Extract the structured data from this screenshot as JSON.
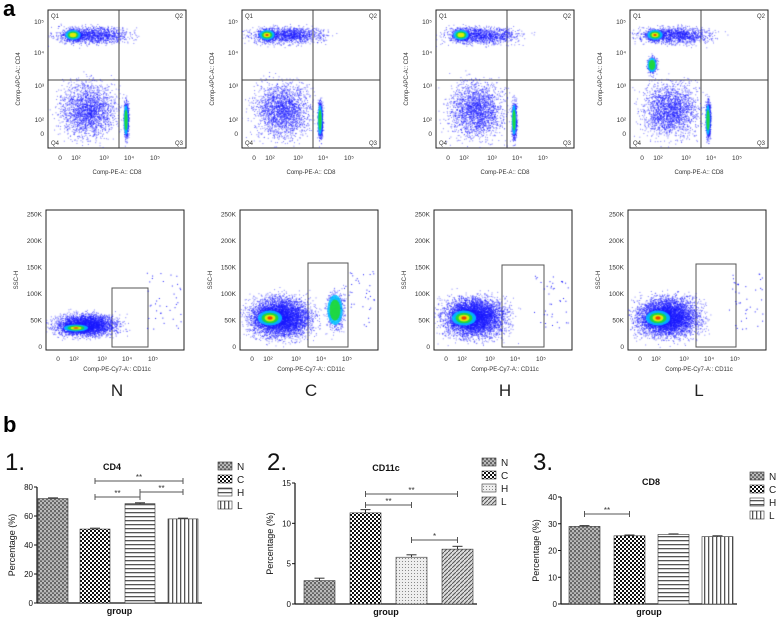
{
  "panel_a_label": "a",
  "panel_b_label": "b",
  "flow": {
    "groups": [
      "N",
      "C",
      "H",
      "L"
    ],
    "top": {
      "xlabel": "Comp-PE-A:: CD8",
      "ylabel": "Comp-APC-A:: CD4",
      "quadrants": [
        "Q1",
        "Q2",
        "Q3",
        "Q4"
      ],
      "xticks": [
        "0",
        "10²",
        "10³",
        "10⁴",
        "10⁵"
      ],
      "yticks": [
        "0",
        "10²",
        "10³",
        "10⁴",
        "10⁵"
      ]
    },
    "bottom": {
      "xlabel": "Comp-PE-Cy7-A:: CD11c",
      "ylabel": "SSC-H",
      "xticks": [
        "0",
        "10²",
        "10³",
        "10⁴",
        "10⁵"
      ],
      "yticks": [
        "0",
        "50K",
        "100K",
        "150K",
        "200K",
        "250K"
      ]
    },
    "density_colors": [
      "#1a1aff",
      "#00c8ff",
      "#22dd22",
      "#ffee00",
      "#ee2200"
    ]
  },
  "chart_data": [
    {
      "type": "bar",
      "number": "1.",
      "title": "CD4",
      "categories": [
        "N",
        "C",
        "H",
        "L"
      ],
      "values": [
        72,
        51,
        68.5,
        58
      ],
      "errors": [
        0.5,
        0.6,
        0.6,
        0.5
      ],
      "xlabel": "group",
      "ylabel": "Percentage (%)",
      "ylim": [
        0,
        80
      ],
      "yticks": [
        "0",
        "20",
        "40",
        "60",
        "80"
      ],
      "legend": [
        "N",
        "C",
        "H",
        "L"
      ],
      "legend_position": "right",
      "significance": [
        {
          "from": "C",
          "to": "L",
          "label": "**"
        },
        {
          "from": "C",
          "to": "H",
          "label": "**"
        },
        {
          "from": "H",
          "to": "L",
          "label": "**"
        }
      ]
    },
    {
      "type": "bar",
      "number": "2.",
      "title": "CD11c",
      "categories": [
        "N",
        "C",
        "H",
        "L"
      ],
      "values": [
        2.9,
        11.3,
        5.8,
        6.8
      ],
      "errors": [
        0.3,
        0.4,
        0.3,
        0.35
      ],
      "xlabel": "group",
      "ylabel": "Percentage (%)",
      "ylim": [
        0,
        15
      ],
      "yticks": [
        "0",
        "5",
        "10",
        "15"
      ],
      "legend": [
        "N",
        "C",
        "H",
        "L"
      ],
      "legend_position": "right",
      "significance": [
        {
          "from": "C",
          "to": "L",
          "label": "**"
        },
        {
          "from": "C",
          "to": "H",
          "label": "**"
        },
        {
          "from": "H",
          "to": "L",
          "label": "*"
        }
      ]
    },
    {
      "type": "bar",
      "number": "3.",
      "title": "CD8",
      "categories": [
        "N",
        "C",
        "H",
        "L"
      ],
      "values": [
        29,
        25.5,
        26,
        25.2
      ],
      "errors": [
        0.3,
        0.3,
        0.2,
        0.3
      ],
      "xlabel": "group",
      "ylabel": "Percentage (%)",
      "ylim": [
        0,
        40
      ],
      "yticks": [
        "0",
        "10",
        "20",
        "30",
        "40"
      ],
      "legend": [
        "N",
        "C",
        "H",
        "L"
      ],
      "legend_position": "right",
      "significance": [
        {
          "from": "N",
          "to": "C",
          "label": "**"
        }
      ]
    }
  ]
}
